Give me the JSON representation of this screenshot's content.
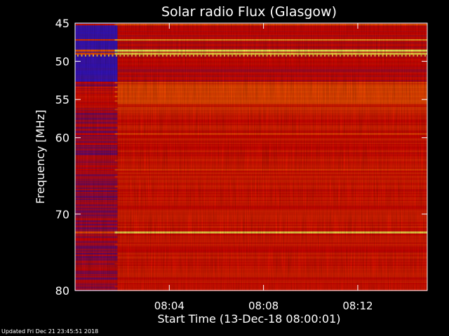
{
  "chart_data": {
    "type": "heatmap",
    "title": "Solar radio Flux (Glasgow)",
    "xlabel": "Start Time (13-Dec-18 08:00:01)",
    "ylabel": "Frequency [MHz]",
    "y_ticks": [
      45,
      50,
      55,
      60,
      70,
      80
    ],
    "x_ticks": [
      "08:04",
      "08:08",
      "08:12"
    ],
    "x_tick_minutes": [
      4,
      8,
      12
    ],
    "xlim_minutes": [
      0,
      14.95
    ],
    "ylim_mhz": [
      45,
      80
    ],
    "y_axis_direction": "inverted",
    "colormap": "blue-red-yellow",
    "quiet_period_end_minutes": 1.8,
    "bright_bands_mhz": [
      {
        "mhz": 45.2,
        "level": 0.75
      },
      {
        "mhz": 47.2,
        "level": 0.85
      },
      {
        "mhz": 48.6,
        "level": 1.0
      },
      {
        "mhz": 49.0,
        "level": 0.95
      },
      {
        "mhz": 52.8,
        "level": 0.7
      },
      {
        "mhz": 53.4,
        "level": 0.75
      },
      {
        "mhz": 54.0,
        "level": 0.75
      },
      {
        "mhz": 54.6,
        "level": 0.75
      },
      {
        "mhz": 55.2,
        "level": 0.72
      },
      {
        "mhz": 56.3,
        "level": 0.65
      },
      {
        "mhz": 59.5,
        "level": 0.7
      },
      {
        "mhz": 63.0,
        "level": 0.6
      },
      {
        "mhz": 64.2,
        "level": 0.68
      },
      {
        "mhz": 65.1,
        "level": 0.6
      },
      {
        "mhz": 66.4,
        "level": 0.6
      },
      {
        "mhz": 72.4,
        "level": 0.95
      },
      {
        "mhz": 74.0,
        "level": 0.6
      },
      {
        "mhz": 76.5,
        "level": 0.55
      },
      {
        "mhz": 79.5,
        "level": 0.55
      }
    ],
    "colors": {
      "background": "#000000",
      "low": "#1a1aff",
      "mid": "#e00000",
      "high": "#ffff40"
    }
  },
  "footer": {
    "updated": "Updated Fri Dec 21 23:45:51 2018"
  }
}
